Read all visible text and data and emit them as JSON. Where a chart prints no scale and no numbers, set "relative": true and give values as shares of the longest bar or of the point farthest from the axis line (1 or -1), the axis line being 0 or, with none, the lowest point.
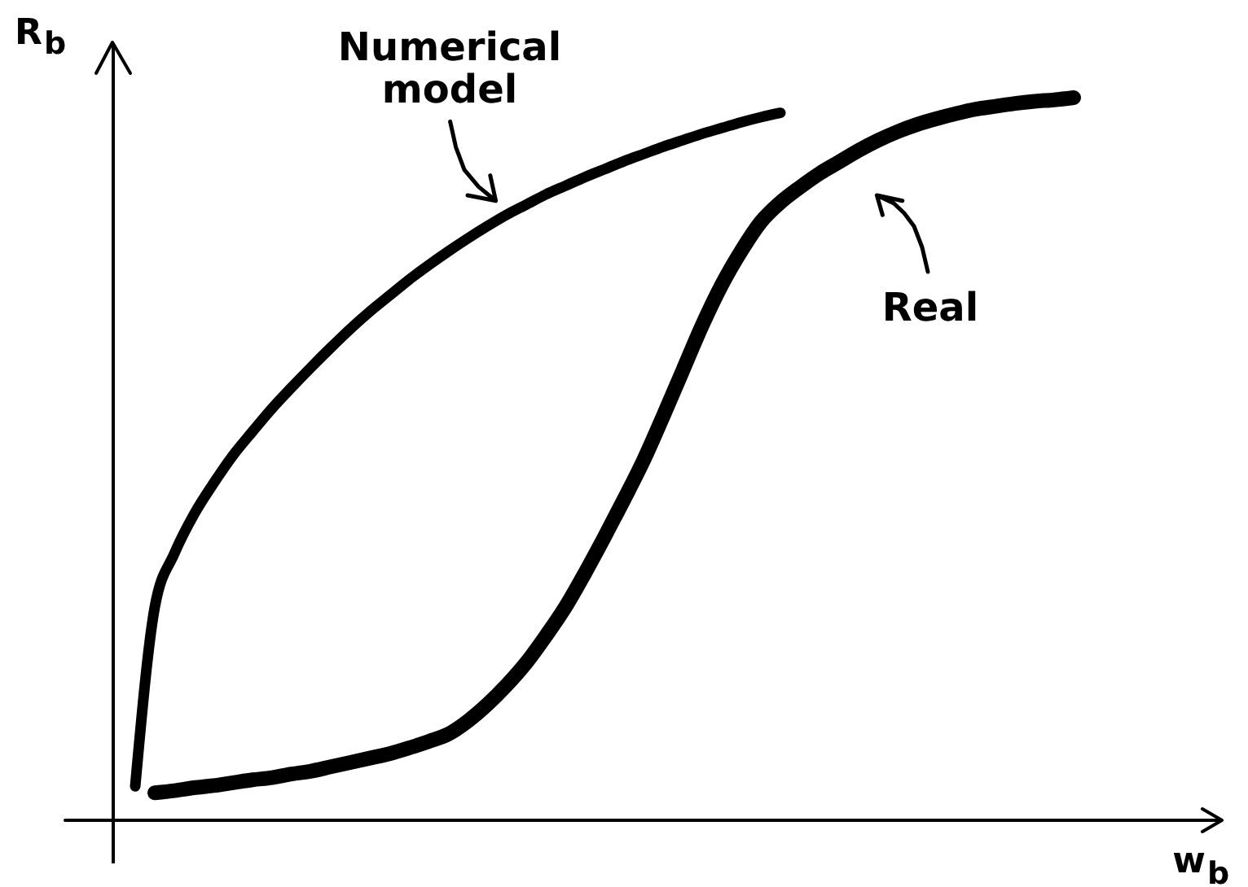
{
  "chart_data": {
    "type": "line",
    "relative": true,
    "xlabel": "w$_{b}$",
    "ylabel": "R$_{b}$",
    "categories": [
      null,
      null,
      null,
      null,
      null,
      null,
      null,
      null,
      null,
      null,
      null,
      null,
      null,
      null,
      null,
      null,
      null,
      null,
      null,
      null,
      null,
      null,
      null,
      null,
      null,
      null,
      null,
      null,
      null,
      null,
      null,
      null,
      null,
      null,
      null,
      null,
      null,
      null,
      null,
      null,
      null,
      null,
      null,
      null,
      null,
      null,
      null,
      null,
      null
    ],
    "series": [
      {
        "name": "Numerical model",
        "color": "#000000",
        "values": [
          0.047,
          0.295,
          0.369,
          0.423,
          0.466,
          0.505,
          0.538,
          0.57,
          0.599,
          0.627,
          0.654,
          0.68,
          0.704,
          0.726,
          0.748,
          0.768,
          0.787,
          0.805,
          0.822,
          0.838,
          0.852,
          0.866,
          0.878,
          0.89,
          0.901,
          0.912,
          0.922,
          0.932,
          0.941,
          0.95,
          0.958,
          0.966,
          0.973,
          0.979,
          null,
          null,
          null,
          null,
          null,
          null,
          null,
          null,
          null,
          null,
          null,
          null,
          null,
          null,
          null
        ]
      },
      {
        "name": "Real",
        "color": "#000000",
        "values": [
          null,
          0.038,
          0.041,
          0.045,
          0.048,
          0.052,
          0.056,
          0.059,
          0.064,
          0.068,
          0.074,
          0.08,
          0.086,
          0.092,
          0.1,
          0.109,
          0.119,
          0.137,
          0.16,
          0.187,
          0.218,
          0.255,
          0.295,
          0.342,
          0.392,
          0.444,
          0.498,
          0.559,
          0.622,
          0.685,
          0.741,
          0.788,
          0.828,
          0.855,
          0.876,
          0.895,
          0.911,
          0.927,
          0.941,
          0.953,
          0.963,
          0.971,
          0.978,
          0.984,
          0.988,
          0.992,
          0.995,
          0.997,
          1
        ]
      }
    ]
  }
}
